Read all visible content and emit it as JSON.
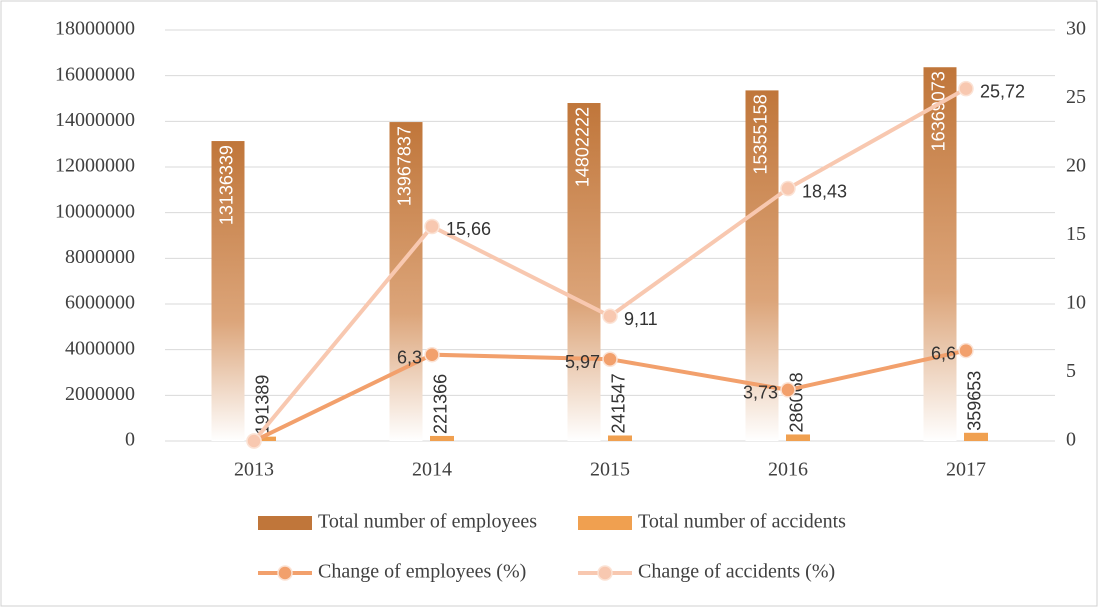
{
  "chart_data": {
    "type": "bar",
    "categories": [
      "2013",
      "2014",
      "2015",
      "2016",
      "2017"
    ],
    "series": [
      {
        "name": "Total number of employees",
        "type": "bar",
        "color": "#c0763a",
        "values": [
          13136339,
          13967837,
          14802222,
          15355158,
          16369073
        ]
      },
      {
        "name": "Total number of accidents",
        "type": "bar",
        "color": "#f0a050",
        "values": [
          191389,
          221366,
          241547,
          286068,
          359653
        ]
      },
      {
        "name": "Change of employees (%)",
        "type": "line",
        "axis": "y2",
        "color": "#f2a06c",
        "values": [
          0,
          6.3,
          5.97,
          3.73,
          6.6
        ],
        "value_labels": [
          null,
          "6,3",
          "5,97",
          "3,73",
          "6,6"
        ]
      },
      {
        "name": "Change of accidents (%)",
        "type": "line",
        "axis": "y2",
        "color": "#f8c8b0",
        "values": [
          0,
          15.66,
          9.11,
          18.43,
          25.72
        ],
        "value_labels": [
          null,
          "15,66",
          "9,11",
          "18,43",
          "25,72"
        ]
      }
    ],
    "ylim": [
      0,
      18000000
    ],
    "yticks": [
      0,
      2000000,
      4000000,
      6000000,
      8000000,
      10000000,
      12000000,
      14000000,
      16000000,
      18000000
    ],
    "y2lim": [
      0,
      30
    ],
    "y2ticks": [
      0,
      5,
      10,
      15,
      20,
      25,
      30
    ],
    "legend": "bottom"
  }
}
